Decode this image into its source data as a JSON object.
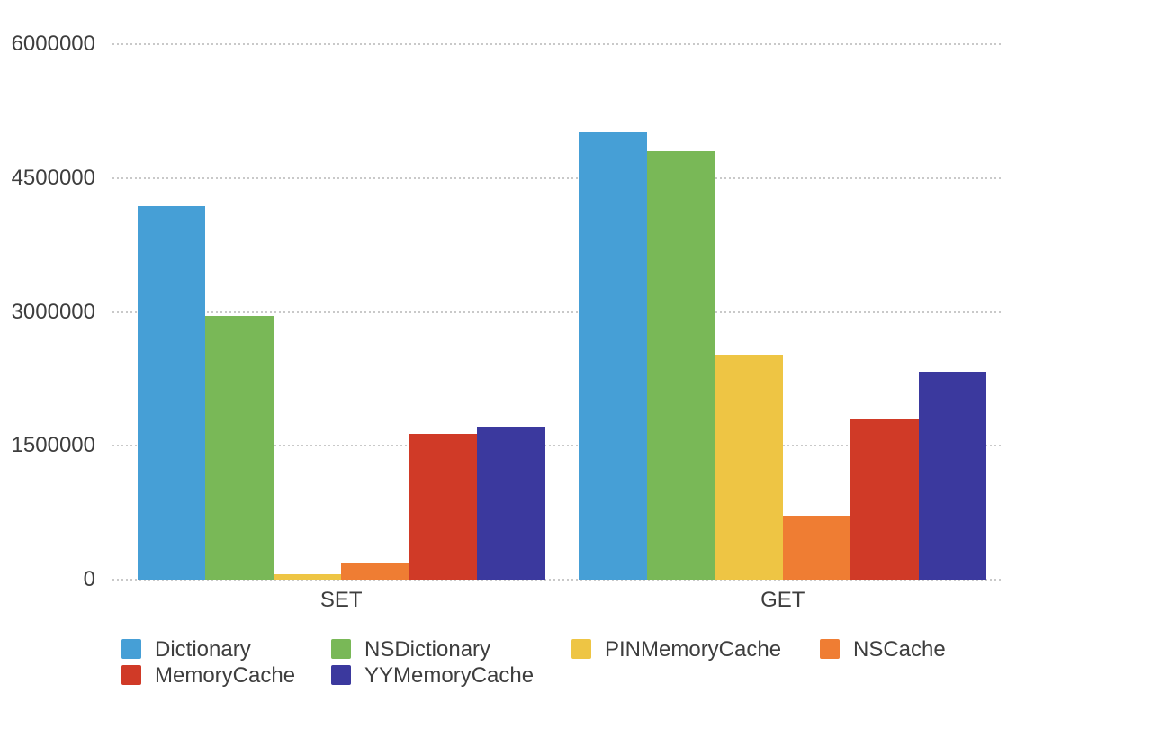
{
  "chart_data": {
    "type": "bar",
    "title": "",
    "xlabel": "",
    "ylabel": "",
    "categories": [
      "SET",
      "GET"
    ],
    "series": [
      {
        "name": "Dictionary",
        "color": "#469fd6",
        "values": [
          4180000,
          5010000
        ]
      },
      {
        "name": "NSDictionary",
        "color": "#79b857",
        "values": [
          2955000,
          4800000
        ]
      },
      {
        "name": "PINMemoryCache",
        "color": "#eec544",
        "values": [
          57000,
          2525000
        ]
      },
      {
        "name": "NSCache",
        "color": "#ef7d33",
        "values": [
          184000,
          712000
        ]
      },
      {
        "name": "MemoryCache",
        "color": "#d03a27",
        "values": [
          1633000,
          1795000
        ]
      },
      {
        "name": "YYMemoryCache",
        "color": "#3b399e",
        "values": [
          1716000,
          2333000
        ]
      }
    ],
    "yticks": [
      {
        "label": "0",
        "value": 0
      },
      {
        "label": "1500000",
        "value": 1500000
      },
      {
        "label": "3000000",
        "value": 3000000
      },
      {
        "label": "4500000",
        "value": 4500000
      },
      {
        "label": "6000000",
        "value": 6000000
      }
    ],
    "ylim": [
      0,
      6000000
    ],
    "grid": "horizontal-dotted",
    "legend_position": "bottom",
    "text_color": "#3e3e3e",
    "gridline_color": "#c9c9c9",
    "background_color": "#ffffff"
  }
}
